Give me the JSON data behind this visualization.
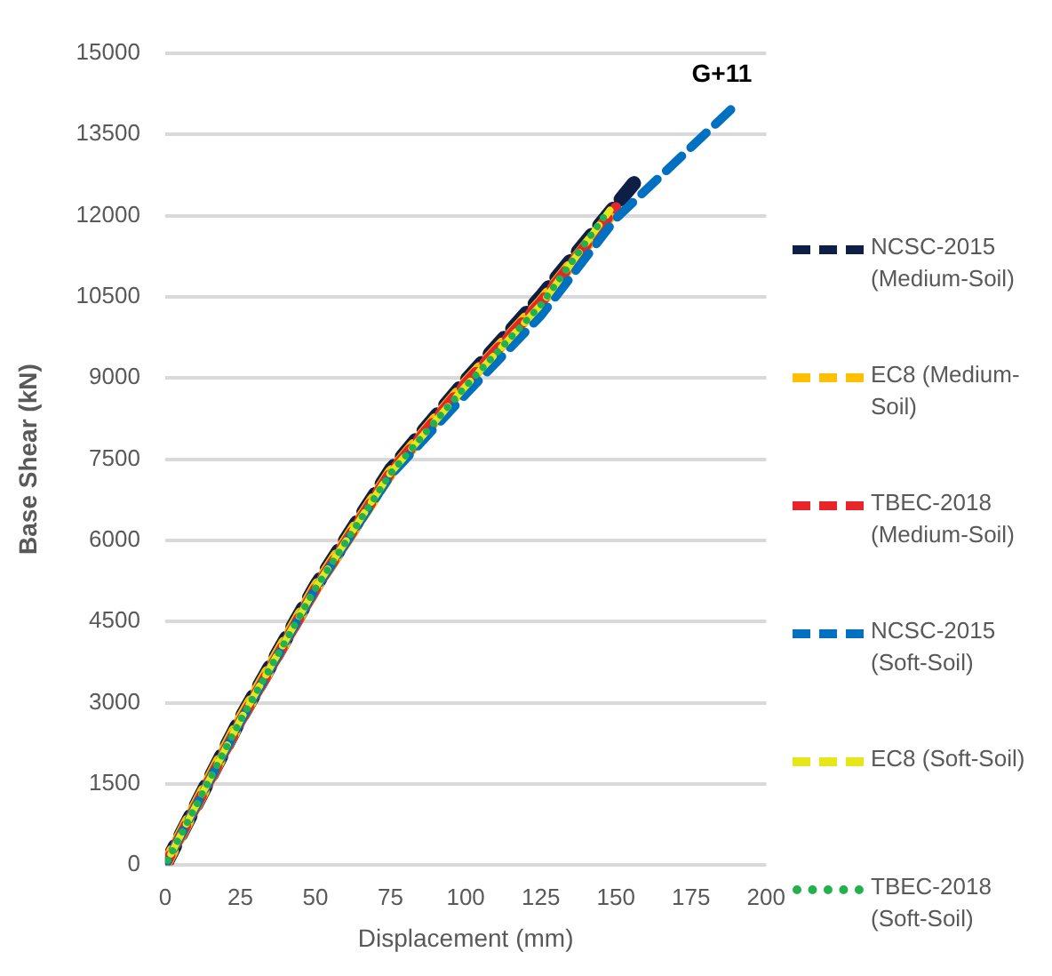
{
  "chart_data": {
    "type": "line",
    "xlabel": "Displacement (mm)",
    "ylabel": "Base Shear (kN)",
    "xlim": [
      0,
      200
    ],
    "xticks": [
      0,
      25,
      50,
      75,
      100,
      125,
      150,
      175,
      200
    ],
    "ylim": [
      0,
      15000
    ],
    "yticks": [
      0,
      1500,
      3000,
      4500,
      6000,
      7500,
      9000,
      10500,
      12000,
      13500,
      15000
    ],
    "grid": "y",
    "legend": "right",
    "marker": "none",
    "annotations": [
      "G+11"
    ],
    "series": [
      {
        "name": "NCSC-2015 (Medium-Soil)",
        "color": "#0d1f45",
        "line_style": "dashed",
        "x": [
          0,
          25,
          50,
          75,
          100,
          125,
          156
        ],
        "values": [
          0,
          2700,
          5150,
          7300,
          8950,
          10500,
          12600
        ]
      },
      {
        "name": "EC8 (Medium-Soil)",
        "color": "#ffc000",
        "line_style": "dashed",
        "x": [
          0,
          25,
          50,
          75,
          100,
          125,
          151
        ],
        "values": [
          0,
          2680,
          5120,
          7250,
          8900,
          10400,
          12200
        ]
      },
      {
        "name": "TBEC-2018 (Medium-Soil)",
        "color": "#e8262a",
        "line_style": "dashed",
        "x": [
          0,
          25,
          50,
          75,
          100,
          125,
          150
        ],
        "values": [
          0,
          2650,
          5100,
          7250,
          8900,
          10400,
          12150
        ]
      },
      {
        "name": "NCSC-2015 (Soft-Soil)",
        "color": "#0070c0",
        "line_style": "dashed",
        "x": [
          0,
          25,
          50,
          75,
          100,
          125,
          150,
          189
        ],
        "values": [
          0,
          2650,
          5100,
          7200,
          8700,
          10150,
          11950,
          14000
        ]
      },
      {
        "name": "EC8 (Soft-Soil)",
        "color": "#e6e619",
        "line_style": "dashed",
        "x": [
          0,
          25,
          50,
          75,
          100,
          125,
          148
        ],
        "values": [
          0,
          2680,
          5120,
          7250,
          8850,
          10350,
          12100
        ]
      },
      {
        "name": "TBEC-2018 (Soft-Soil)",
        "color": "#22b14c",
        "line_style": "dotted",
        "x": [
          0,
          25,
          50,
          75,
          100,
          125,
          147
        ],
        "values": [
          0,
          2670,
          5110,
          7240,
          8850,
          10350,
          12050
        ]
      }
    ]
  }
}
